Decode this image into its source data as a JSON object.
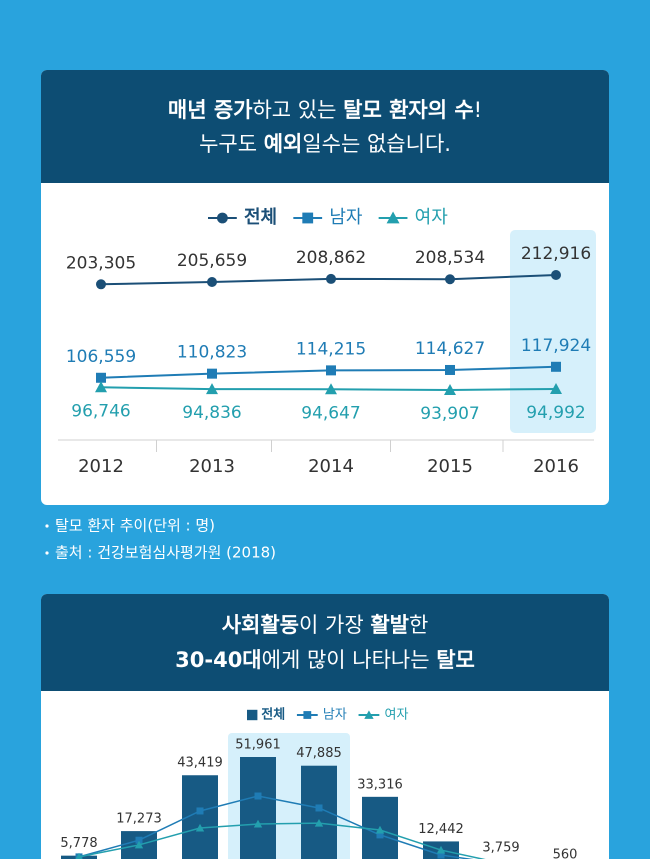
{
  "sections": [
    {
      "title": [
        [
          {
            "text": "매년 증가",
            "b": true
          },
          {
            "text": "하고 있는 ",
            "b": false
          },
          {
            "text": "탈모 환자의 수",
            "b": true
          },
          {
            "text": "!",
            "b": false
          }
        ],
        [
          {
            "text": "누구도 ",
            "b": false
          },
          {
            "text": "예외",
            "b": true
          },
          {
            "text": "일수는 없습니다.",
            "b": false
          }
        ]
      ],
      "notes": [
        "탈모 환자 추이(단위 : 명)",
        "출처 : 건강보험심사평가원 (2018)"
      ]
    },
    {
      "title": [
        [
          {
            "text": "사회활동",
            "b": true
          },
          {
            "text": "이 가장 ",
            "b": false
          },
          {
            "text": "활발",
            "b": true
          },
          {
            "text": "한",
            "b": false
          }
        ],
        [
          {
            "text": "30-40대",
            "b": true
          },
          {
            "text": "에게 많이 나타나는 ",
            "b": false
          },
          {
            "text": "탈모",
            "b": true
          }
        ]
      ]
    }
  ],
  "chart_data": [
    {
      "type": "line",
      "categories": [
        "2012",
        "2013",
        "2014",
        "2015",
        "2016"
      ],
      "series": [
        {
          "name": "전체",
          "color": "#1b4f77",
          "marker": "circle",
          "values": [
            203305,
            205659,
            208862,
            208534,
            212916
          ],
          "value_labels": [
            "203,305",
            "205,659",
            "208,862",
            "208,534",
            "212,916"
          ]
        },
        {
          "name": "남자",
          "color": "#1f7cb5",
          "marker": "square",
          "values": [
            106559,
            110823,
            114215,
            114627,
            117924
          ],
          "value_labels": [
            "106,559",
            "110,823",
            "114,215",
            "114,627",
            "117,924"
          ]
        },
        {
          "name": "여자",
          "color": "#239fae",
          "marker": "triangle",
          "values": [
            96746,
            94836,
            94647,
            93907,
            94992
          ],
          "value_labels": [
            "96,746",
            "94,836",
            "94,647",
            "93,907",
            "94,992"
          ]
        }
      ]
    },
    {
      "type": "bar-line",
      "categories": [
        null,
        null,
        null,
        null,
        null,
        null,
        null,
        null,
        null
      ],
      "series": [
        {
          "name": "전체",
          "color": "#175a84",
          "marker": "bar",
          "values": [
            5778,
            17273,
            43419,
            51961,
            47885,
            33316,
            12442,
            3759,
            560
          ],
          "value_labels": [
            "5,778",
            "17,273",
            "43,419",
            "51,961",
            "47,885",
            "33,316",
            "12,442",
            "3,759",
            "560"
          ]
        },
        {
          "name": "남자",
          "color": "#1f7cb5",
          "marker": "square",
          "values": [
            5200,
            13000,
            26700,
            33700,
            28100,
            15500,
            6100,
            2000,
            500
          ]
        },
        {
          "name": "여자",
          "color": "#239fae",
          "marker": "triangle",
          "values": [
            5200,
            10800,
            18700,
            20600,
            21000,
            17800,
            8400,
            2300,
            400
          ]
        }
      ]
    }
  ]
}
